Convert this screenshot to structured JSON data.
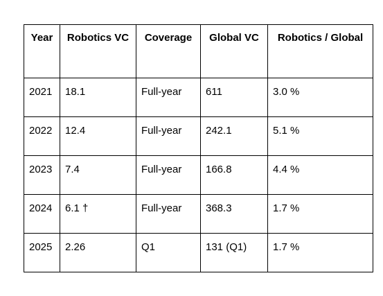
{
  "table": {
    "headers": {
      "year": "Year",
      "robotics_vc": "Robotics VC",
      "coverage": "Coverage",
      "global_vc": "Global VC",
      "ratio": "Robotics / Global"
    },
    "rows": [
      {
        "year": "2021",
        "robotics_vc": "18.1",
        "coverage": "Full-year",
        "global_vc": "611",
        "ratio": "3.0 %"
      },
      {
        "year": "2022",
        "robotics_vc": "12.4",
        "coverage": "Full-year",
        "global_vc": "242.1",
        "ratio": "5.1 %"
      },
      {
        "year": "2023",
        "robotics_vc": "7.4",
        "coverage": "Full-year",
        "global_vc": "166.8",
        "ratio": "4.4 %"
      },
      {
        "year": "2024",
        "robotics_vc": "6.1 †",
        "coverage": "Full-year",
        "global_vc": "368.3",
        "ratio": "1.7 %"
      },
      {
        "year": "2025",
        "robotics_vc": "2.26",
        "coverage": "Q1",
        "global_vc": "131 (Q1)",
        "ratio": "1.7 %"
      }
    ]
  }
}
